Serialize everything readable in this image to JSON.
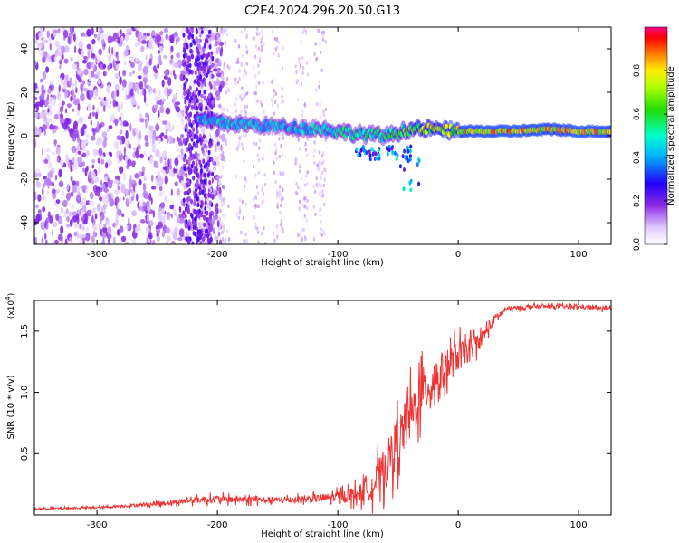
{
  "title": "C2E4.2024.296.20.50.G13",
  "chart_data": [
    {
      "type": "heatmap",
      "xlabel": "Height of straight line (km)",
      "ylabel": "Frequency (Hz)",
      "xlim": [
        -352,
        127
      ],
      "ylim": [
        -50,
        50
      ],
      "xticks": [
        -300,
        -200,
        -100,
        0,
        100
      ],
      "yticks": [
        -40,
        -20,
        0,
        20,
        40
      ],
      "colorbar": {
        "label": "Normalized spectral amplitude",
        "range": [
          0.0,
          1.0
        ],
        "ticks": [
          0.0,
          0.2,
          0.4,
          0.6,
          0.8
        ],
        "tick_labels": [
          "0.0",
          "0.2",
          "0.4",
          "0.6",
          "0.8"
        ]
      },
      "ridge": {
        "description": "carrier signal near 0-5 Hz",
        "x": [
          -215,
          -200,
          -170,
          -140,
          -110,
          -85,
          -60,
          -40,
          -20,
          0,
          40,
          80,
          100,
          127
        ],
        "y": [
          7,
          6,
          5,
          4,
          3,
          1,
          0,
          3,
          3,
          2,
          2,
          3,
          2,
          2
        ],
        "amplitude": [
          0.5,
          0.55,
          0.5,
          0.5,
          0.55,
          0.6,
          0.6,
          0.75,
          0.85,
          0.9,
          0.95,
          0.9,
          0.95,
          0.9
        ]
      },
      "noise_floor_region": {
        "x_start": -352,
        "x_end": -215,
        "amplitude": 0.15
      }
    },
    {
      "type": "line",
      "xlabel": "Height of straight line (km)",
      "ylabel": "SNR (10 * v/v)",
      "y_scale_label": "(x10",
      "y_scale_exponent": "4",
      "xlim": [
        -352,
        127
      ],
      "ylim": [
        0,
        17500
      ],
      "xticks": [
        -300,
        -200,
        -100,
        0,
        100
      ],
      "yticks": [
        5000,
        10000,
        15000
      ],
      "ytick_labels": [
        "0.5",
        "1.0",
        "1.5"
      ],
      "series": [
        {
          "name": "SNR",
          "color": "#ee3333",
          "x": [
            -352,
            -300,
            -250,
            -220,
            -200,
            -150,
            -120,
            -100,
            -80,
            -70,
            -60,
            -50,
            -40,
            -30,
            -20,
            -10,
            0,
            10,
            20,
            30,
            40,
            60,
            80,
            100,
            127
          ],
          "y": [
            500,
            600,
            900,
            1200,
            1300,
            1200,
            1300,
            1500,
            1800,
            2500,
            4000,
            6000,
            8000,
            10000,
            11000,
            12000,
            13000,
            13500,
            14500,
            16000,
            16800,
            17000,
            17000,
            17000,
            16800
          ],
          "spread": [
            150,
            150,
            300,
            500,
            600,
            500,
            600,
            800,
            1500,
            2500,
            3500,
            4000,
            4200,
            4000,
            3500,
            3000,
            2500,
            1800,
            1200,
            700,
            400,
            300,
            300,
            300,
            300
          ]
        }
      ]
    }
  ]
}
